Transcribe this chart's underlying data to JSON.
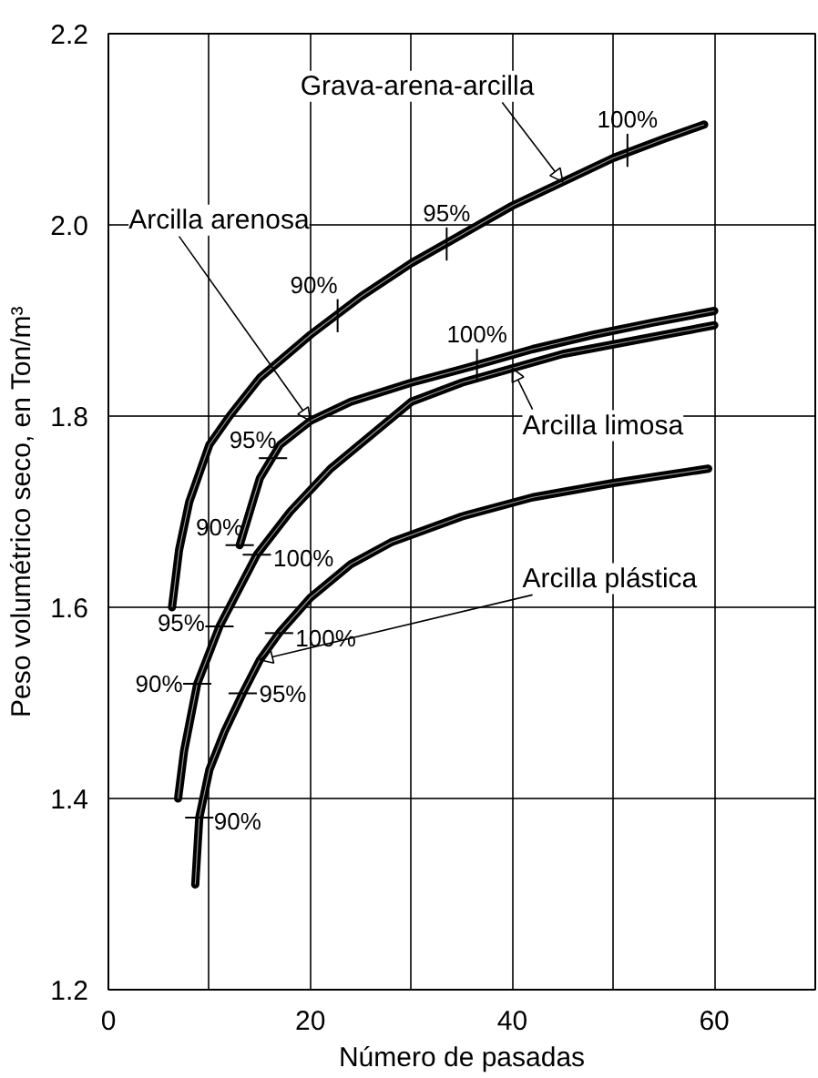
{
  "chart_data": {
    "type": "line",
    "xlabel": "Número de pasadas",
    "ylabel": "Peso volumétrico seco, en Ton/m³",
    "xlim": [
      0,
      70
    ],
    "ylim": [
      1.2,
      2.2
    ],
    "xticks": [
      0,
      {
        "value": 10,
        "label": null
      },
      20,
      {
        "value": 30,
        "label": null
      },
      40,
      {
        "value": 50,
        "label": null
      },
      60
    ],
    "yticks": [
      1.2,
      1.4,
      1.6,
      1.8,
      {
        "value": 2,
        "label": "2.0"
      },
      2.2
    ],
    "grid": true,
    "marker": "none",
    "line_style": "solid",
    "series": [
      {
        "name": "Grava-arena-arcilla",
        "color": "#000000",
        "x": [
          6.3,
          7,
          8,
          10,
          12,
          15,
          20,
          25,
          30,
          35,
          40,
          45,
          50,
          55,
          59
        ],
        "values": [
          1.6,
          1.66,
          1.71,
          1.77,
          1.8,
          1.84,
          1.885,
          1.925,
          1.96,
          1.99,
          2.02,
          2.045,
          2.07,
          2.09,
          2.105
        ]
      },
      {
        "name": "Arcilla arenosa",
        "color": "#000000",
        "x": [
          13,
          14,
          15,
          17,
          20,
          24,
          30,
          36,
          42,
          48,
          54,
          60
        ],
        "values": [
          1.665,
          1.7,
          1.735,
          1.77,
          1.795,
          1.815,
          1.835,
          1.852,
          1.87,
          1.885,
          1.898,
          1.91
        ]
      },
      {
        "name": "Arcilla limosa",
        "color": "#000000",
        "x": [
          6.9,
          7.5,
          8.8,
          11,
          14.7,
          18,
          22,
          26,
          30,
          35,
          40,
          45,
          50,
          55,
          60
        ],
        "values": [
          1.4,
          1.45,
          1.52,
          1.58,
          1.655,
          1.7,
          1.745,
          1.78,
          1.815,
          1.835,
          1.85,
          1.865,
          1.875,
          1.885,
          1.895
        ]
      },
      {
        "name": "Arcilla plástica",
        "color": "#000000",
        "x": [
          8.6,
          9,
          10,
          11.5,
          13.3,
          15,
          16.9,
          20,
          24,
          28,
          35,
          42,
          50,
          59.4
        ],
        "values": [
          1.31,
          1.38,
          1.43,
          1.47,
          1.51,
          1.545,
          1.573,
          1.61,
          1.645,
          1.668,
          1.695,
          1.715,
          1.73,
          1.745
        ]
      }
    ],
    "annotations": [
      {
        "text": "90%",
        "x": 22.7,
        "y": 1.905
      },
      {
        "text": "95%",
        "x": 33.5,
        "y": 1.98
      },
      {
        "text": "100%",
        "x": 51.4,
        "y": 2.078
      },
      {
        "text": "90%",
        "x": 13,
        "y": 1.665
      },
      {
        "text": "95%",
        "x": 16.3,
        "y": 1.756
      },
      {
        "text": "100%",
        "x": 36.5,
        "y": 1.853
      },
      {
        "text": "90%",
        "x": 8.8,
        "y": 1.52
      },
      {
        "text": "95%",
        "x": 11,
        "y": 1.58
      },
      {
        "text": "100%",
        "x": 14.7,
        "y": 1.655
      },
      {
        "text": "90%",
        "x": 9,
        "y": 1.38
      },
      {
        "text": "95%",
        "x": 13.3,
        "y": 1.51
      },
      {
        "text": "100%",
        "x": 16.9,
        "y": 1.573
      }
    ]
  }
}
